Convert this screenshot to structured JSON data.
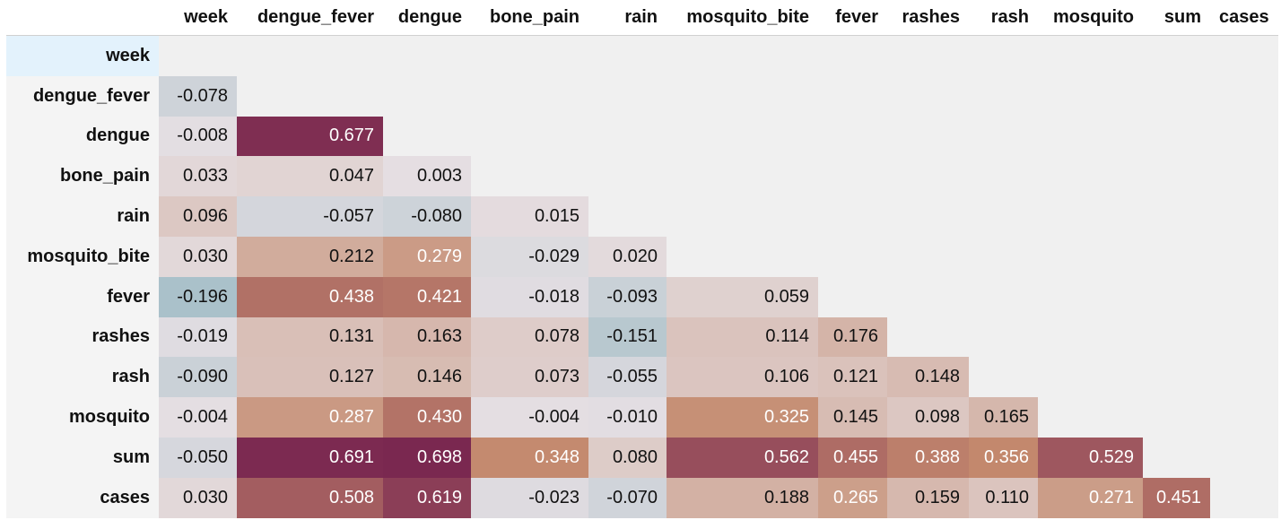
{
  "table": {
    "columns": [
      "week",
      "dengue_fever",
      "dengue",
      "bone_pain",
      "rain",
      "mosquito_bite",
      "fever",
      "rashes",
      "rash",
      "mosquito",
      "sum",
      "cases"
    ],
    "rows": [
      {
        "label": "week",
        "values": []
      },
      {
        "label": "dengue_fever",
        "values": [
          "-0.078"
        ]
      },
      {
        "label": "dengue",
        "values": [
          "-0.008",
          "0.677"
        ]
      },
      {
        "label": "bone_pain",
        "values": [
          "0.033",
          "0.047",
          "0.003"
        ]
      },
      {
        "label": "rain",
        "values": [
          "0.096",
          "-0.057",
          "-0.080",
          "0.015"
        ]
      },
      {
        "label": "mosquito_bite",
        "values": [
          "0.030",
          "0.212",
          "0.279",
          "-0.029",
          "0.020"
        ]
      },
      {
        "label": "fever",
        "values": [
          "-0.196",
          "0.438",
          "0.421",
          "-0.018",
          "-0.093",
          "0.059"
        ]
      },
      {
        "label": "rashes",
        "values": [
          "-0.019",
          "0.131",
          "0.163",
          "0.078",
          "-0.151",
          "0.114",
          "0.176"
        ]
      },
      {
        "label": "rash",
        "values": [
          "-0.090",
          "0.127",
          "0.146",
          "0.073",
          "-0.055",
          "0.106",
          "0.121",
          "0.148"
        ]
      },
      {
        "label": "mosquito",
        "values": [
          "-0.004",
          "0.287",
          "0.430",
          "-0.004",
          "-0.010",
          "0.325",
          "0.145",
          "0.098",
          "0.165"
        ]
      },
      {
        "label": "sum",
        "values": [
          "-0.050",
          "0.691",
          "0.698",
          "0.348",
          "0.080",
          "0.562",
          "0.455",
          "0.388",
          "0.356",
          "0.529"
        ]
      },
      {
        "label": "cases",
        "values": [
          "0.030",
          "0.508",
          "0.619",
          "-0.023",
          "-0.070",
          "0.188",
          "0.265",
          "0.159",
          "0.110",
          "0.271",
          "0.451"
        ]
      }
    ]
  },
  "colors": {
    "negative_strong": "#a9c0c9",
    "neutral": "#e5dfe3",
    "positive_mid": "#c48a6e",
    "positive_strong": "#7a2750"
  }
}
